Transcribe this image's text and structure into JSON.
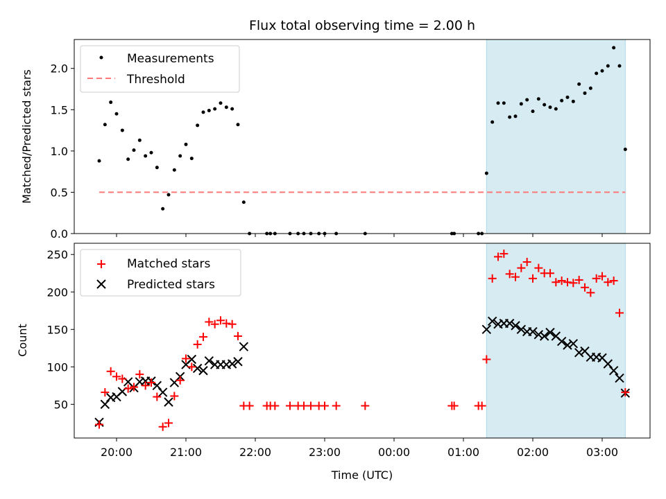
{
  "chart_data": [
    {
      "type": "scatter",
      "title": "Flux total observing time = 2.00 h",
      "xlabel": "",
      "ylabel": "Matched/Predicted stars",
      "ylim": [
        0,
        2.35
      ],
      "yticks": [
        "0.0",
        "0.5",
        "1.0",
        "1.5",
        "2.0"
      ],
      "ytick_values": [
        0,
        0.5,
        1.0,
        1.5,
        2.0
      ],
      "threshold": {
        "name": "Threshold",
        "value": 0.5,
        "x_start": "19:45",
        "x_end": "03:20",
        "color": "#ff7777",
        "style": "dashed"
      },
      "highlight": {
        "x_start": "01:20",
        "x_end": "03:20",
        "color": "#add8e6"
      },
      "legend_placement": "top-left",
      "series": [
        {
          "name": "Measurements",
          "color": "#000000",
          "marker": "dot",
          "points": [
            [
              "19:45",
              0.88
            ],
            [
              "19:50",
              1.32
            ],
            [
              "19:55",
              1.59
            ],
            [
              "20:00",
              1.45
            ],
            [
              "20:05",
              1.25
            ],
            [
              "20:10",
              0.9
            ],
            [
              "20:15",
              1.01
            ],
            [
              "20:20",
              1.13
            ],
            [
              "20:25",
              0.94
            ],
            [
              "20:30",
              0.98
            ],
            [
              "20:35",
              0.8
            ],
            [
              "20:40",
              0.3
            ],
            [
              "20:45",
              0.47
            ],
            [
              "20:50",
              0.77
            ],
            [
              "20:55",
              0.94
            ],
            [
              "21:00",
              1.08
            ],
            [
              "21:05",
              0.91
            ],
            [
              "21:10",
              1.31
            ],
            [
              "21:15",
              1.47
            ],
            [
              "21:20",
              1.49
            ],
            [
              "21:25",
              1.51
            ],
            [
              "21:30",
              1.58
            ],
            [
              "21:35",
              1.53
            ],
            [
              "21:40",
              1.51
            ],
            [
              "21:45",
              1.32
            ],
            [
              "21:50",
              0.38
            ],
            [
              "21:55",
              0.0
            ],
            [
              "22:10",
              0.0
            ],
            [
              "22:13",
              0.0
            ],
            [
              "22:17",
              0.0
            ],
            [
              "22:30",
              0.0
            ],
            [
              "22:37",
              0.0
            ],
            [
              "22:42",
              0.0
            ],
            [
              "22:48",
              0.0
            ],
            [
              "22:55",
              0.0
            ],
            [
              "23:00",
              0.0
            ],
            [
              "23:10",
              0.0
            ],
            [
              "23:35",
              0.0
            ],
            [
              "00:50",
              0.0
            ],
            [
              "00:52",
              0.0
            ],
            [
              "01:13",
              0.0
            ],
            [
              "01:16",
              0.0
            ],
            [
              "01:20",
              0.73
            ],
            [
              "01:25",
              1.35
            ],
            [
              "01:30",
              1.58
            ],
            [
              "01:35",
              1.58
            ],
            [
              "01:40",
              1.41
            ],
            [
              "01:45",
              1.42
            ],
            [
              "01:50",
              1.57
            ],
            [
              "01:55",
              1.62
            ],
            [
              "02:00",
              1.48
            ],
            [
              "02:05",
              1.63
            ],
            [
              "02:10",
              1.56
            ],
            [
              "02:15",
              1.53
            ],
            [
              "02:20",
              1.51
            ],
            [
              "02:25",
              1.61
            ],
            [
              "02:30",
              1.65
            ],
            [
              "02:35",
              1.6
            ],
            [
              "02:40",
              1.81
            ],
            [
              "02:45",
              1.7
            ],
            [
              "02:50",
              1.76
            ],
            [
              "02:55",
              1.94
            ],
            [
              "03:00",
              1.97
            ],
            [
              "03:05",
              2.03
            ],
            [
              "03:10",
              2.25
            ],
            [
              "03:15",
              2.03
            ],
            [
              "03:20",
              1.02
            ]
          ]
        }
      ]
    },
    {
      "type": "scatter",
      "title": "",
      "xlabel": "Time (UTC)",
      "ylabel": "Count",
      "ylim": [
        5,
        265
      ],
      "yticks": [
        "50",
        "100",
        "150",
        "200",
        "250"
      ],
      "ytick_values": [
        50,
        100,
        150,
        200,
        250
      ],
      "xticks": [
        "20:00",
        "21:00",
        "22:00",
        "23:00",
        "00:00",
        "01:00",
        "02:00",
        "03:00"
      ],
      "xlim": [
        "19:25",
        "03:40"
      ],
      "highlight": {
        "x_start": "01:20",
        "x_end": "03:20",
        "color": "#add8e6"
      },
      "legend_placement": "top-left",
      "series": [
        {
          "name": "Matched stars",
          "color": "#ff0000",
          "marker": "plus",
          "points": [
            [
              "19:45",
              23
            ],
            [
              "19:50",
              66
            ],
            [
              "19:55",
              94
            ],
            [
              "20:00",
              87
            ],
            [
              "20:05",
              84
            ],
            [
              "20:10",
              71
            ],
            [
              "20:15",
              73
            ],
            [
              "20:20",
              90
            ],
            [
              "20:25",
              75
            ],
            [
              "20:30",
              79
            ],
            [
              "20:35",
              60
            ],
            [
              "20:40",
              20
            ],
            [
              "20:45",
              25
            ],
            [
              "20:50",
              61
            ],
            [
              "20:55",
              82
            ],
            [
              "21:00",
              111
            ],
            [
              "21:05",
              100
            ],
            [
              "21:10",
              130
            ],
            [
              "21:15",
              140
            ],
            [
              "21:20",
              160
            ],
            [
              "21:25",
              157
            ],
            [
              "21:30",
              162
            ],
            [
              "21:35",
              158
            ],
            [
              "21:40",
              157
            ],
            [
              "21:45",
              141
            ],
            [
              "21:50",
              48
            ],
            [
              "21:55",
              48
            ],
            [
              "22:10",
              48
            ],
            [
              "22:13",
              48
            ],
            [
              "22:17",
              48
            ],
            [
              "22:30",
              48
            ],
            [
              "22:37",
              48
            ],
            [
              "22:42",
              48
            ],
            [
              "22:48",
              48
            ],
            [
              "22:55",
              48
            ],
            [
              "23:00",
              48
            ],
            [
              "23:10",
              48
            ],
            [
              "23:35",
              48
            ],
            [
              "00:50",
              48
            ],
            [
              "00:52",
              48
            ],
            [
              "01:13",
              48
            ],
            [
              "01:16",
              48
            ],
            [
              "01:20",
              110
            ],
            [
              "01:25",
              218
            ],
            [
              "01:30",
              247
            ],
            [
              "01:35",
              251
            ],
            [
              "01:40",
              224
            ],
            [
              "01:45",
              220
            ],
            [
              "01:50",
              232
            ],
            [
              "01:55",
              240
            ],
            [
              "02:00",
              218
            ],
            [
              "02:05",
              232
            ],
            [
              "02:10",
              225
            ],
            [
              "02:15",
              225
            ],
            [
              "02:20",
              213
            ],
            [
              "02:25",
              215
            ],
            [
              "02:30",
              213
            ],
            [
              "02:35",
              212
            ],
            [
              "02:40",
              216
            ],
            [
              "02:45",
              206
            ],
            [
              "02:50",
              199
            ],
            [
              "02:55",
              218
            ],
            [
              "03:00",
              221
            ],
            [
              "03:05",
              213
            ],
            [
              "03:10",
              215
            ],
            [
              "03:15",
              172
            ],
            [
              "03:20",
              66
            ]
          ]
        },
        {
          "name": "Predicted stars",
          "color": "#000000",
          "marker": "cross",
          "points": [
            [
              "19:45",
              26
            ],
            [
              "19:50",
              50
            ],
            [
              "19:55",
              59
            ],
            [
              "20:00",
              60
            ],
            [
              "20:05",
              67
            ],
            [
              "20:10",
              80
            ],
            [
              "20:15",
              72
            ],
            [
              "20:20",
              80
            ],
            [
              "20:25",
              81
            ],
            [
              "20:30",
              81
            ],
            [
              "20:35",
              75
            ],
            [
              "20:40",
              66
            ],
            [
              "20:45",
              53
            ],
            [
              "20:50",
              79
            ],
            [
              "20:55",
              87
            ],
            [
              "21:00",
              103
            ],
            [
              "21:05",
              110
            ],
            [
              "21:10",
              98
            ],
            [
              "21:15",
              95
            ],
            [
              "21:20",
              108
            ],
            [
              "21:25",
              103
            ],
            [
              "21:30",
              103
            ],
            [
              "21:35",
              103
            ],
            [
              "21:40",
              104
            ],
            [
              "21:45",
              107
            ],
            [
              "21:50",
              127
            ],
            [
              "01:20",
              150
            ],
            [
              "01:25",
              161
            ],
            [
              "01:30",
              157
            ],
            [
              "01:35",
              158
            ],
            [
              "01:40",
              158
            ],
            [
              "01:45",
              155
            ],
            [
              "01:50",
              150
            ],
            [
              "01:55",
              147
            ],
            [
              "02:00",
              147
            ],
            [
              "02:05",
              143
            ],
            [
              "02:10",
              141
            ],
            [
              "02:15",
              146
            ],
            [
              "02:20",
              141
            ],
            [
              "02:25",
              134
            ],
            [
              "02:30",
              129
            ],
            [
              "02:35",
              131
            ],
            [
              "02:40",
              119
            ],
            [
              "02:45",
              121
            ],
            [
              "02:50",
              113
            ],
            [
              "02:55",
              113
            ],
            [
              "03:00",
              112
            ],
            [
              "03:05",
              104
            ],
            [
              "03:10",
              95
            ],
            [
              "03:15",
              85
            ],
            [
              "03:20",
              65
            ]
          ]
        }
      ]
    }
  ]
}
